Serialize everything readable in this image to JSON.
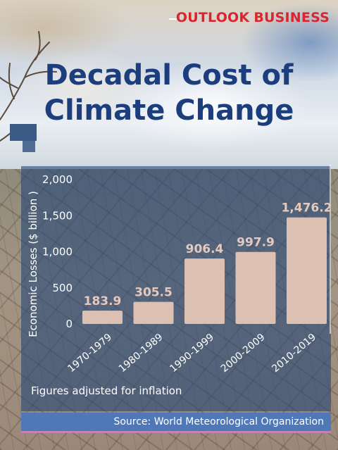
{
  "brand": {
    "part1": "OUTLOOK",
    "part2": "BUSINESS"
  },
  "title_line1": "Decadal Cost of",
  "title_line2": "Climate Change",
  "note": "Figures adjusted for inflation",
  "source": "Source: World Meteorological Organization",
  "colors": {
    "bar": "#dcc0b2",
    "title": "#1d3e7c",
    "brand": "#d9262e",
    "data_label": "#e6c9bd",
    "panel": "#264878",
    "source_bar": "#4e78b8"
  },
  "chart_data": {
    "type": "bar",
    "title": "Decadal Cost of Climate Change",
    "ylabel": "Economic Losses ($ billion )",
    "xlabel": "",
    "ylim": [
      0,
      2000
    ],
    "yticks": [
      "0",
      "500",
      "1,000",
      "1,500",
      "2,000"
    ],
    "ytick_values": [
      0,
      500,
      1000,
      1500,
      2000
    ],
    "categories": [
      "1970-1979",
      "1980-1989",
      "1990-1999",
      "2000-2009",
      "2010-2019"
    ],
    "values": [
      183.9,
      305.5,
      906.4,
      997.9,
      1476.2
    ],
    "value_labels": [
      "183.9",
      "305.5",
      "906.4",
      "997.9",
      "1,476.2"
    ],
    "grid": false
  }
}
